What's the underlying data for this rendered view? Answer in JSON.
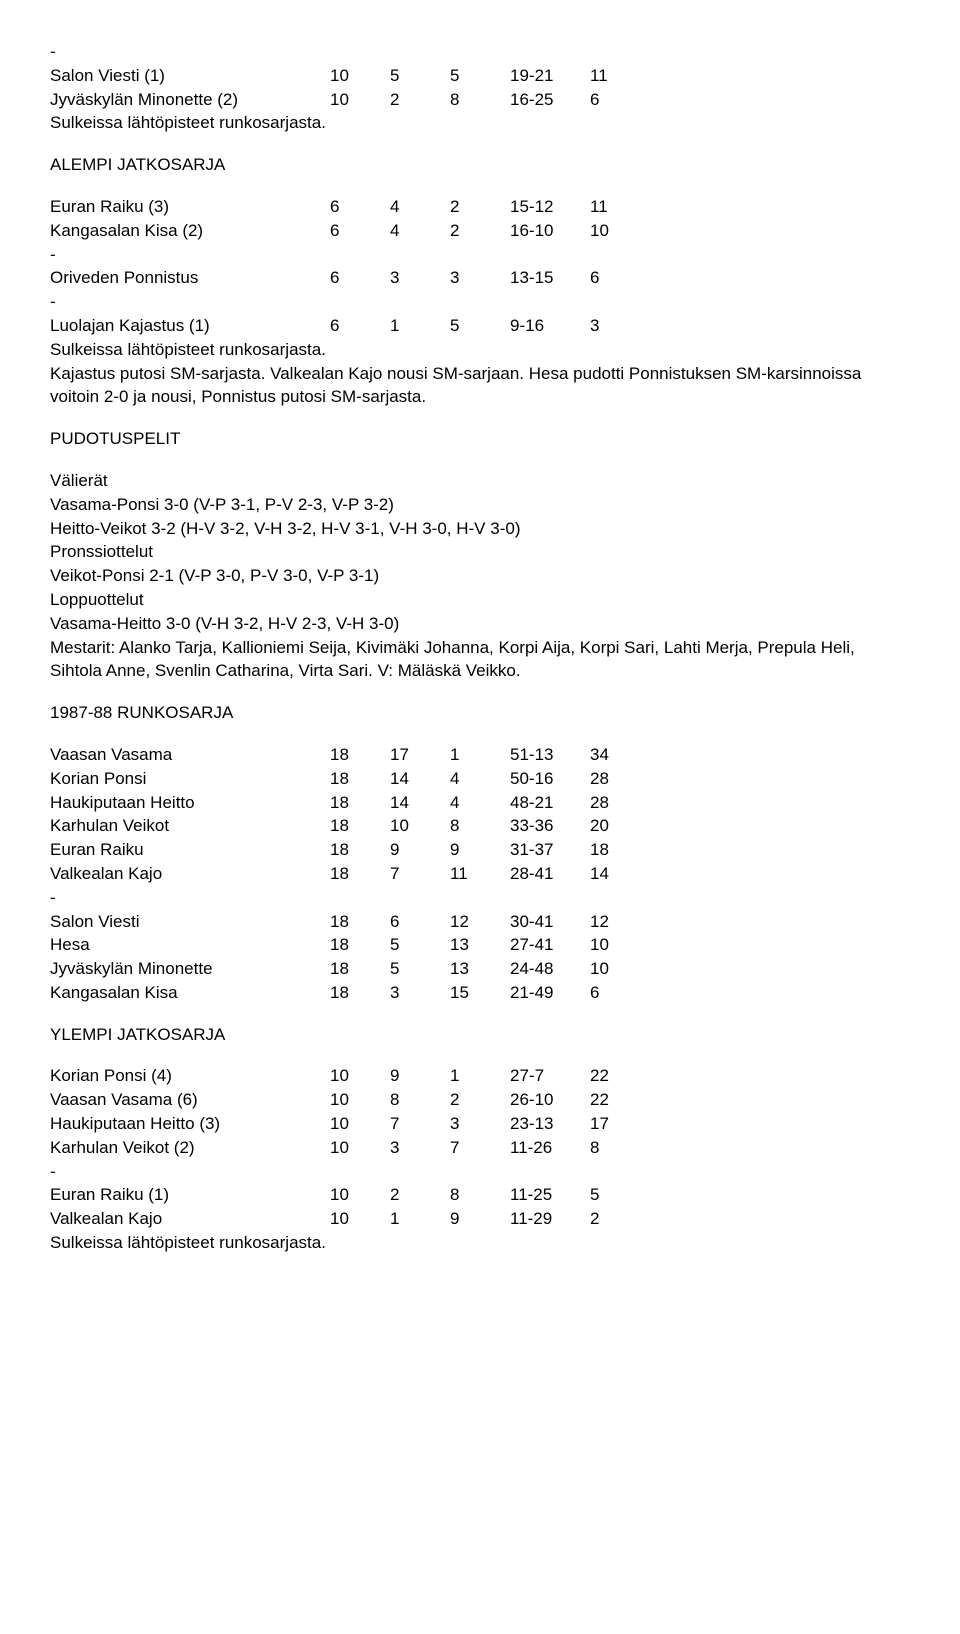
{
  "section1": {
    "dash": "-",
    "rows": [
      {
        "team": "Salon Viesti (1)",
        "p": "10",
        "w": "5",
        "l": "5",
        "sets": "19-21",
        "pts": "11"
      },
      {
        "team": "Jyväskylän Minonette (2)",
        "p": "10",
        "w": "2",
        "l": "8",
        "sets": "16-25",
        "pts": "6"
      }
    ],
    "note": "Sulkeissa lähtöpisteet runkosarjasta."
  },
  "alempi": {
    "title": "ALEMPI JATKOSARJA",
    "rows": [
      {
        "team": "Euran Raiku (3)",
        "p": "6",
        "w": "4",
        "l": "2",
        "sets": "15-12",
        "pts": "11"
      },
      {
        "team": "Kangasalan Kisa (2)",
        "p": "6",
        "w": "4",
        "l": "2",
        "sets": "16-10",
        "pts": "10"
      },
      {
        "dash": "-"
      },
      {
        "team": "Oriveden Ponnistus",
        "p": "6",
        "w": "3",
        "l": "3",
        "sets": "13-15",
        "pts": "6"
      },
      {
        "dash": "-"
      },
      {
        "team": "Luolajan Kajastus (1)",
        "p": "6",
        "w": "1",
        "l": "5",
        "sets": "9-16",
        "pts": "3"
      }
    ],
    "note": "Sulkeissa lähtöpisteet runkosarjasta.\nKajastus putosi SM-sarjasta. Valkealan Kajo nousi SM-sarjaan. Hesa pudotti Ponnistuksen SM-karsinnoissa voitoin 2-0 ja nousi, Ponnistus putosi SM-sarjasta."
  },
  "pudotus": {
    "title": "PUDOTUSPELIT",
    "valierat_label": "Välierät",
    "valierat_lines": [
      "Vasama-Ponsi 3-0 (V-P 3-1, P-V 2-3, V-P 3-2)",
      "Heitto-Veikot 3-2 (H-V 3-2, V-H 3-2, H-V 3-1, V-H 3-0, H-V 3-0)"
    ],
    "pronssi_label": "Pronssiottelut",
    "pronssi_line": "Veikot-Ponsi 2-1 (V-P 3-0, P-V 3-0, V-P 3-1)",
    "loppu_label": "Loppuottelut",
    "loppu_line": "Vasama-Heitto 3-0 (V-H 3-2, H-V 2-3, V-H 3-0)",
    "mestarit": "Mestarit: Alanko Tarja, Kallioniemi Seija, Kivimäki Johanna, Korpi Aija, Korpi Sari, Lahti Merja, Prepula Heli, Sihtola Anne, Svenlin Catharina, Virta Sari. V: Mäläskä Veikko."
  },
  "runko": {
    "title": "1987-88 RUNKOSARJA",
    "rows": [
      {
        "team": "Vaasan Vasama",
        "p": "18",
        "w": "17",
        "l": "1",
        "sets": "51-13",
        "pts": "34"
      },
      {
        "team": "Korian Ponsi",
        "p": "18",
        "w": "14",
        "l": "4",
        "sets": "50-16",
        "pts": "28"
      },
      {
        "team": "Haukiputaan Heitto",
        "p": "18",
        "w": "14",
        "l": "4",
        "sets": "48-21",
        "pts": "28"
      },
      {
        "team": "Karhulan Veikot",
        "p": "18",
        "w": "10",
        "l": "8",
        "sets": "33-36",
        "pts": "20"
      },
      {
        "team": "Euran Raiku",
        "p": "18",
        "w": "9",
        "l": "9",
        "sets": "31-37",
        "pts": "18"
      },
      {
        "team": "Valkealan Kajo",
        "p": "18",
        "w": "7",
        "l": "11",
        "sets": "28-41",
        "pts": "14"
      },
      {
        "dash": "-"
      },
      {
        "team": "Salon Viesti",
        "p": "18",
        "w": "6",
        "l": "12",
        "sets": "30-41",
        "pts": "12"
      },
      {
        "team": "Hesa",
        "p": "18",
        "w": "5",
        "l": "13",
        "sets": "27-41",
        "pts": "10"
      },
      {
        "team": "Jyväskylän Minonette",
        "p": "18",
        "w": "5",
        "l": "13",
        "sets": "24-48",
        "pts": "10"
      },
      {
        "team": "Kangasalan Kisa",
        "p": "18",
        "w": "3",
        "l": "15",
        "sets": "21-49",
        "pts": "6"
      }
    ]
  },
  "ylempi": {
    "title": "YLEMPI JATKOSARJA",
    "rows": [
      {
        "team": "Korian Ponsi (4)",
        "p": "10",
        "w": "9",
        "l": "1",
        "sets": "27-7",
        "pts": "22"
      },
      {
        "team": "Vaasan Vasama (6)",
        "p": "10",
        "w": "8",
        "l": "2",
        "sets": "26-10",
        "pts": "22"
      },
      {
        "team": "Haukiputaan Heitto (3)",
        "p": "10",
        "w": "7",
        "l": "3",
        "sets": "23-13",
        "pts": "17"
      },
      {
        "team": "Karhulan Veikot (2)",
        "p": "10",
        "w": "3",
        "l": "7",
        "sets": "11-26",
        "pts": "8"
      },
      {
        "dash": "-"
      },
      {
        "team": "Euran Raiku (1)",
        "p": "10",
        "w": "2",
        "l": "8",
        "sets": "11-25",
        "pts": "5"
      },
      {
        "team": "Valkealan Kajo",
        "p": "10",
        "w": "1",
        "l": "9",
        "sets": "11-29",
        "pts": "2"
      }
    ],
    "note": "Sulkeissa lähtöpisteet runkosarjasta."
  }
}
